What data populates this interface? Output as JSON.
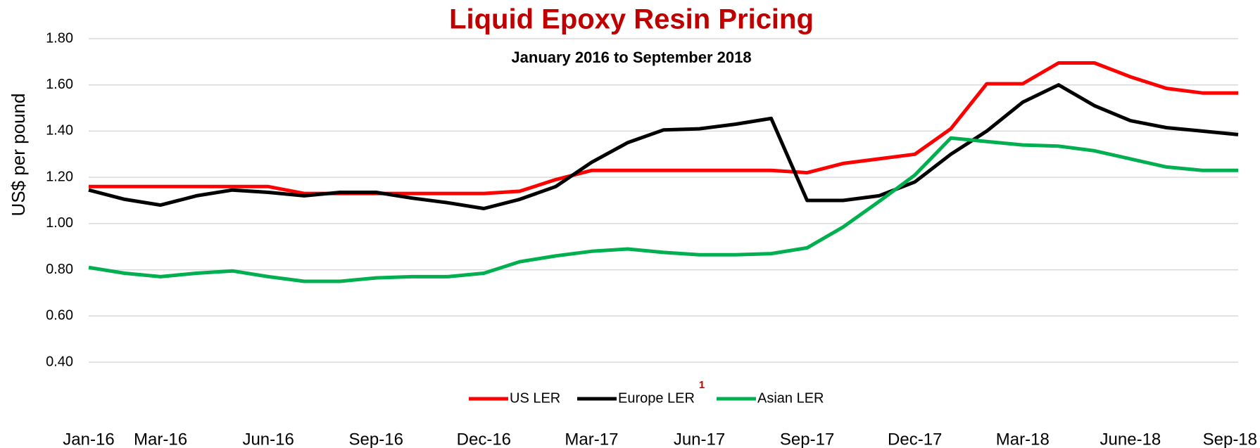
{
  "chart_data": {
    "type": "line",
    "title": "Liquid Epoxy Resin Pricing",
    "subtitle": "January 2016 to September 2018",
    "y_label": "US$ per pound",
    "annotation": "1",
    "categories": [
      "Jan-16",
      null,
      "Mar-16",
      null,
      null,
      "Jun-16",
      null,
      null,
      "Sep-16",
      null,
      null,
      "Dec-16",
      null,
      null,
      "Mar-17",
      null,
      null,
      "Jun-17",
      null,
      null,
      "Sep-17",
      null,
      null,
      "Dec-17",
      null,
      null,
      "Mar-18",
      null,
      null,
      "June-18",
      null,
      null,
      "Sep-18"
    ],
    "series": [
      {
        "name": "US LER",
        "color": "#ff0000",
        "values": [
          1.16,
          1.16,
          1.16,
          1.16,
          1.16,
          1.16,
          1.13,
          1.13,
          1.13,
          1.13,
          1.13,
          1.13,
          1.14,
          1.19,
          1.23,
          1.23,
          1.23,
          1.23,
          1.23,
          1.23,
          1.22,
          1.26,
          1.28,
          1.3,
          1.41,
          1.605,
          1.605,
          1.695,
          1.695,
          1.635,
          1.585,
          1.565,
          1.565
        ]
      },
      {
        "name": "Europe LER",
        "color": "#000000",
        "values": [
          1.145,
          1.105,
          1.08,
          1.12,
          1.145,
          1.135,
          1.12,
          1.135,
          1.135,
          1.11,
          1.09,
          1.065,
          1.105,
          1.16,
          1.265,
          1.35,
          1.405,
          1.41,
          1.43,
          1.455,
          1.1,
          1.1,
          1.12,
          1.18,
          1.3,
          1.4,
          1.525,
          1.6,
          1.51,
          1.445,
          1.415,
          1.4,
          1.385
        ]
      },
      {
        "name": "Asian LER",
        "color": "#00b050",
        "values": [
          0.81,
          0.785,
          0.77,
          0.785,
          0.795,
          0.77,
          0.75,
          0.75,
          0.765,
          0.77,
          0.77,
          0.785,
          0.835,
          0.86,
          0.88,
          0.89,
          0.875,
          0.865,
          0.865,
          0.87,
          0.895,
          0.985,
          1.095,
          1.21,
          1.37,
          1.355,
          1.34,
          1.335,
          1.315,
          1.28,
          1.245,
          1.23,
          1.23
        ]
      }
    ],
    "ylim": [
      0.4,
      1.8
    ],
    "yticks": [
      {
        "value": 0.4,
        "label": "0.40"
      },
      {
        "value": 0.6,
        "label": "0.60"
      },
      {
        "value": 0.8,
        "label": "0.80"
      },
      {
        "value": 1.0,
        "label": "1.00"
      },
      {
        "value": 1.2,
        "label": "1.20"
      },
      {
        "value": 1.4,
        "label": "1.40"
      },
      {
        "value": 1.6,
        "label": "1.60"
      },
      {
        "value": 1.8,
        "label": "1.80"
      }
    ],
    "grid": true,
    "legend": "bottom"
  }
}
